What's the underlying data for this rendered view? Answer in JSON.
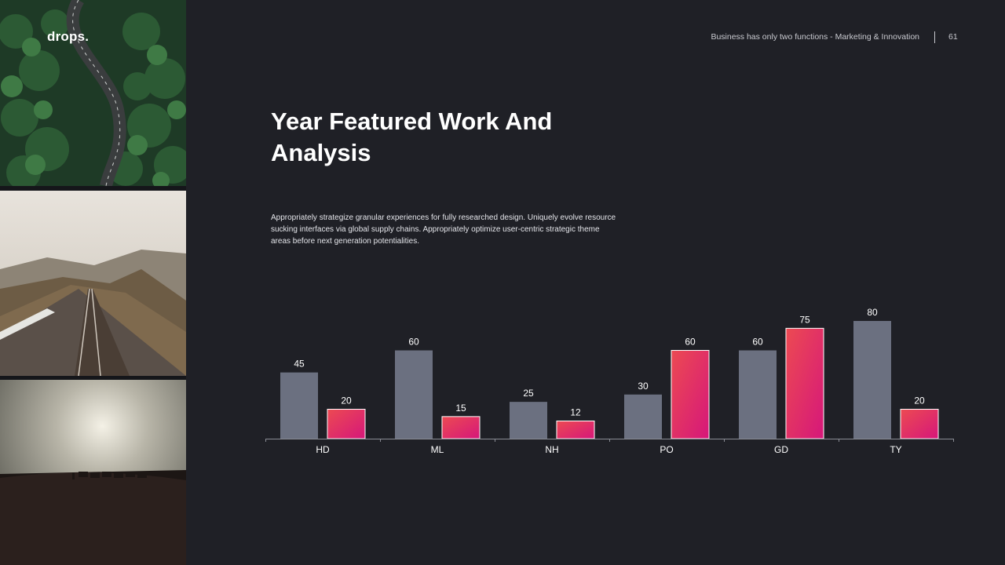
{
  "brand": {
    "logo": "drops."
  },
  "header": {
    "tagline": "Business has only two functions - Marketing & Innovation",
    "page_number": "61"
  },
  "main": {
    "title": "Year Featured Work And Analysis",
    "body": "Appropriately strategize granular experiences for fully researched design. Uniquely evolve resource sucking interfaces via global supply chains. Appropriately optimize user-centric strategic theme areas before next generation potentialities."
  },
  "photos": [
    {
      "subject": "forest-road-image"
    },
    {
      "subject": "mountain-railway-image"
    },
    {
      "subject": "desert-caravan-image"
    }
  ],
  "colors": {
    "background": "#1f2026",
    "series_a": "#6b7080",
    "series_b_start": "#ec4a52",
    "series_b_end": "#d6177a"
  },
  "chart_data": {
    "type": "bar",
    "categories": [
      "HD",
      "ML",
      "NH",
      "PO",
      "GD",
      "TY"
    ],
    "series": [
      {
        "values": [
          45,
          60,
          25,
          30,
          60,
          80
        ]
      },
      {
        "values": [
          20,
          15,
          12,
          60,
          75,
          20
        ]
      }
    ],
    "ylim": [
      0,
      80
    ],
    "grid": false,
    "legend": "none"
  }
}
